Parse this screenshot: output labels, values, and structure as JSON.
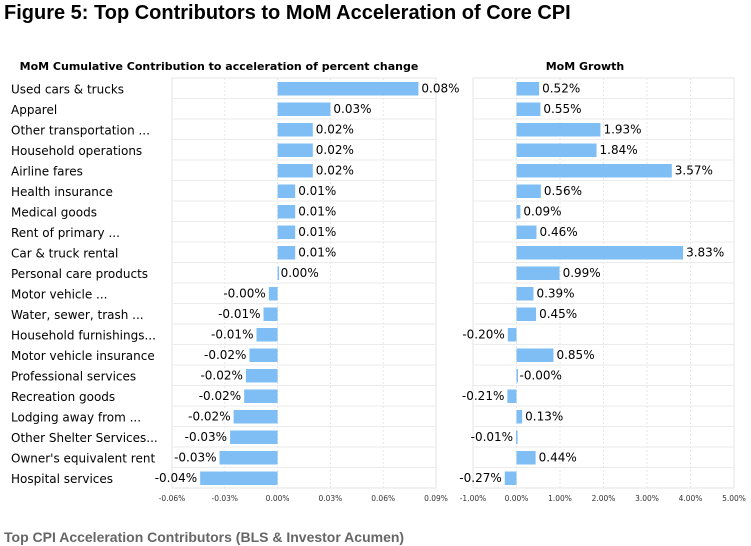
{
  "figure": {
    "title": "Figure 5: Top Contributors to MoM Acceleration of Core CPI",
    "caption": "Top CPI Acceleration Contributors (BLS & Investor Acumen)"
  },
  "chart_data": [
    {
      "type": "bar",
      "orientation": "horizontal",
      "title": "MoM Cumulative Contribution to acceleration of percent change",
      "categories": [
        "Used cars & trucks",
        "Apparel",
        "Other transportation ...",
        "Household operations",
        "Airline fares",
        "Health insurance",
        "Medical goods",
        "Rent of primary ...",
        "Car & truck rental",
        "Personal care products",
        "Motor vehicle ...",
        "Water, sewer, trash ...",
        "Household furnishings...",
        "Motor vehicle insurance",
        "Professional services",
        "Recreation goods",
        "Lodging away from ...",
        "Other Shelter Services...",
        "Owner's equivalent rent",
        "Hospital services"
      ],
      "values": [
        0.08,
        0.03,
        0.02,
        0.02,
        0.02,
        0.01,
        0.01,
        0.01,
        0.01,
        0.0,
        -0.005,
        -0.008,
        -0.012,
        -0.016,
        -0.018,
        -0.019,
        -0.025,
        -0.027,
        -0.033,
        -0.044
      ],
      "value_labels": [
        "0.08%",
        "0.03%",
        "0.02%",
        "0.02%",
        "0.02%",
        "0.01%",
        "0.01%",
        "0.01%",
        "0.01%",
        "0.00%",
        "-0.00%",
        "-0.01%",
        "-0.01%",
        "-0.02%",
        "-0.02%",
        "-0.02%",
        "-0.02%",
        "-0.03%",
        "-0.03%",
        "-0.04%"
      ],
      "xlim": [
        -0.06,
        0.09
      ],
      "xticks": [
        -0.06,
        -0.03,
        0,
        0.03,
        0.06,
        0.09
      ],
      "xtick_labels": [
        "-0.06%",
        "-0.03%",
        "0.00%",
        "0.03%",
        "0.06%",
        "0.09%"
      ],
      "grid": true,
      "bar_color": "#7fbef5"
    },
    {
      "type": "bar",
      "orientation": "horizontal",
      "title": "MoM Growth",
      "categories": [
        "Used cars & trucks",
        "Apparel",
        "Other transportation ...",
        "Household operations",
        "Airline fares",
        "Health insurance",
        "Medical goods",
        "Rent of primary ...",
        "Car & truck rental",
        "Personal care products",
        "Motor vehicle ...",
        "Water, sewer, trash ...",
        "Household furnishings...",
        "Motor vehicle insurance",
        "Professional services",
        "Recreation goods",
        "Lodging away from ...",
        "Other Shelter Services...",
        "Owner's equivalent rent",
        "Hospital services"
      ],
      "values": [
        0.52,
        0.55,
        1.93,
        1.84,
        3.57,
        0.56,
        0.09,
        0.46,
        3.83,
        0.99,
        0.39,
        0.45,
        -0.2,
        0.85,
        -0.0,
        -0.21,
        0.13,
        -0.01,
        0.44,
        -0.27
      ],
      "value_labels": [
        "0.52%",
        "0.55%",
        "1.93%",
        "1.84%",
        "3.57%",
        "0.56%",
        "0.09%",
        "0.46%",
        "3.83%",
        "0.99%",
        "0.39%",
        "0.45%",
        "-0.20%",
        "0.85%",
        "-0.00%",
        "-0.21%",
        "0.13%",
        "-0.01%",
        "0.44%",
        "-0.27%"
      ],
      "xlim": [
        -1.0,
        5.0
      ],
      "xticks": [
        -1,
        0,
        1,
        2,
        3,
        4,
        5
      ],
      "xtick_labels": [
        "-1.00%",
        "0.00%",
        "1.00%",
        "2.00%",
        "3.00%",
        "4.00%",
        "5.00%"
      ],
      "grid": true,
      "bar_color": "#7fbef5"
    }
  ]
}
